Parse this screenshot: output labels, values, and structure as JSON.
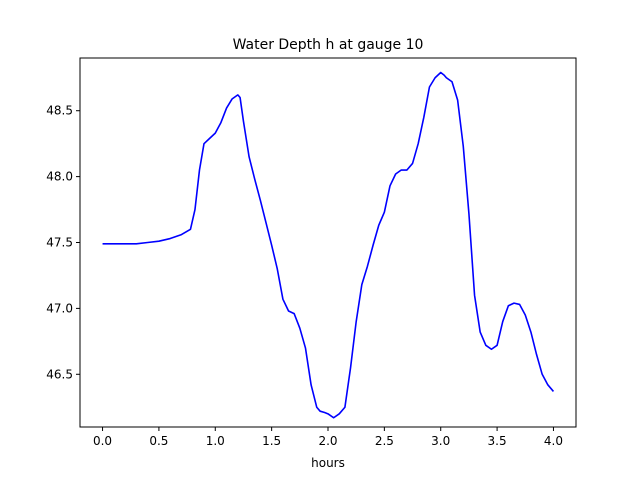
{
  "chart_data": {
    "type": "line",
    "title": "Water Depth h at gauge 10",
    "xlabel": "hours",
    "ylabel": "",
    "xlim": [
      -0.2,
      4.2
    ],
    "ylim": [
      46.1,
      48.9
    ],
    "xticks": [
      0.0,
      0.5,
      1.0,
      1.5,
      2.0,
      2.5,
      3.0,
      3.5,
      4.0
    ],
    "xtick_labels": [
      "0.0",
      "0.5",
      "1.0",
      "1.5",
      "2.0",
      "2.5",
      "3.0",
      "3.5",
      "4.0"
    ],
    "yticks": [
      46.5,
      47.0,
      47.5,
      48.0,
      48.5
    ],
    "ytick_labels": [
      "46.5",
      "47.0",
      "47.5",
      "48.0",
      "48.5"
    ],
    "grid": false,
    "series": [
      {
        "color": "#0000ff",
        "x": [
          0.0,
          0.1,
          0.2,
          0.3,
          0.4,
          0.5,
          0.6,
          0.7,
          0.78,
          0.82,
          0.86,
          0.9,
          0.95,
          1.0,
          1.05,
          1.1,
          1.15,
          1.2,
          1.22,
          1.25,
          1.3,
          1.35,
          1.4,
          1.45,
          1.5,
          1.55,
          1.6,
          1.65,
          1.7,
          1.75,
          1.8,
          1.85,
          1.9,
          1.93,
          1.97,
          2.0,
          2.05,
          2.1,
          2.15,
          2.2,
          2.25,
          2.3,
          2.35,
          2.4,
          2.45,
          2.5,
          2.55,
          2.6,
          2.65,
          2.7,
          2.75,
          2.8,
          2.85,
          2.9,
          2.95,
          3.0,
          3.03,
          3.05,
          3.1,
          3.15,
          3.2,
          3.25,
          3.3,
          3.35,
          3.4,
          3.45,
          3.5,
          3.55,
          3.6,
          3.65,
          3.7,
          3.75,
          3.8,
          3.85,
          3.9,
          3.95,
          4.0
        ],
        "y": [
          47.49,
          47.49,
          47.49,
          47.49,
          47.5,
          47.51,
          47.53,
          47.56,
          47.6,
          47.75,
          48.05,
          48.25,
          48.29,
          48.33,
          48.41,
          48.52,
          48.59,
          48.62,
          48.6,
          48.42,
          48.15,
          47.98,
          47.82,
          47.65,
          47.48,
          47.3,
          47.07,
          46.98,
          46.96,
          46.85,
          46.7,
          46.42,
          46.25,
          46.22,
          46.21,
          46.2,
          46.17,
          46.2,
          46.25,
          46.55,
          46.9,
          47.18,
          47.32,
          47.48,
          47.63,
          47.73,
          47.93,
          48.02,
          48.05,
          48.05,
          48.1,
          48.25,
          48.45,
          48.68,
          48.75,
          48.79,
          48.77,
          48.75,
          48.72,
          48.58,
          48.23,
          47.72,
          47.1,
          46.82,
          46.72,
          46.69,
          46.72,
          46.9,
          47.02,
          47.04,
          47.03,
          46.95,
          46.82,
          46.65,
          46.5,
          46.42,
          46.37
        ]
      }
    ]
  }
}
